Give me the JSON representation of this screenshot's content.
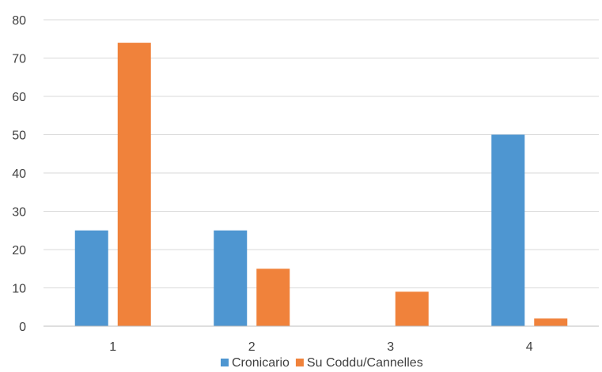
{
  "chart_data": {
    "type": "bar",
    "categories": [
      "1",
      "2",
      "3",
      "4"
    ],
    "series": [
      {
        "name": "Cronicario",
        "color": "#4e96d1",
        "values": [
          25,
          25,
          0,
          50
        ]
      },
      {
        "name": "Su Coddu/Cannelles",
        "color": "#f0823b",
        "values": [
          74,
          15,
          9,
          2
        ]
      }
    ],
    "ylim": [
      0,
      80
    ],
    "yticks": [
      0,
      10,
      20,
      30,
      40,
      50,
      60,
      70,
      80
    ],
    "grid": true,
    "legend_position": "bottom"
  }
}
